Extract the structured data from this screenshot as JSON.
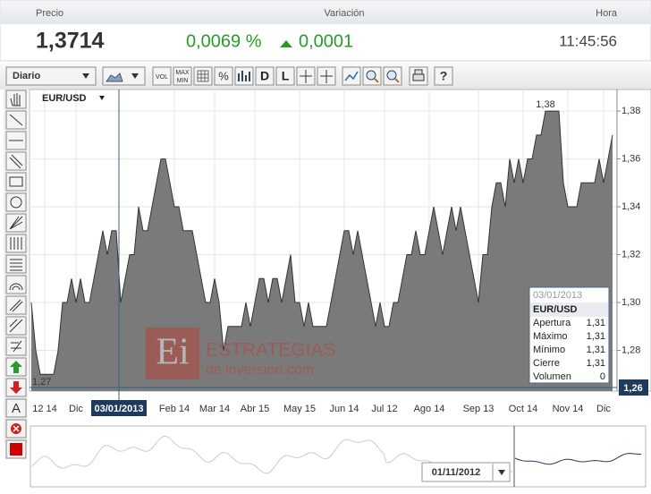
{
  "header": {
    "price_label": "Precio",
    "change_label": "Variación",
    "time_label": "Hora",
    "price": "1,3714",
    "change_pct": "0,0069 %",
    "change_abs": "0,0001",
    "time": "11:45:56"
  },
  "toolbar": {
    "period": "Diario",
    "vol": "VOL",
    "maxmin_top": "MAX",
    "maxmin_bottom": "MIN",
    "pct": "%",
    "d": "D",
    "l": "L",
    "help": "?",
    "text_tool": "A"
  },
  "chart_data": {
    "type": "area",
    "symbol": "EUR/USD",
    "categories": [
      null,
      null,
      null,
      "12 14",
      null,
      null,
      null,
      null,
      null,
      null,
      "Dic",
      null,
      null,
      null,
      null,
      null,
      null,
      null,
      null,
      null,
      null,
      null,
      null,
      null,
      null,
      null,
      null,
      null,
      null,
      null,
      null,
      null,
      "Feb 14",
      null,
      null,
      null,
      null,
      null,
      null,
      null,
      null,
      "Mar 14",
      null,
      null,
      null,
      null,
      null,
      null,
      null,
      null,
      "Abr 15",
      null,
      null,
      null,
      null,
      null,
      null,
      null,
      null,
      null,
      "May 15",
      null,
      null,
      null,
      null,
      null,
      null,
      null,
      null,
      null,
      "Jun 14",
      null,
      null,
      null,
      null,
      null,
      null,
      null,
      null,
      "Jul 12",
      null,
      null,
      null,
      null,
      null,
      null,
      null,
      null,
      null,
      "Ago 14",
      null,
      null,
      null,
      null,
      null,
      null,
      null,
      null,
      null,
      null,
      "Sep 13",
      null,
      null,
      null,
      null,
      null,
      null,
      null,
      null,
      null,
      "Oct 14",
      null,
      null,
      null,
      null,
      null,
      null,
      null,
      null,
      null,
      "Nov 14",
      null,
      null,
      null,
      null,
      null,
      null,
      null,
      "Dic",
      null,
      null
    ],
    "values": [
      1.3,
      1.28,
      1.27,
      1.27,
      1.27,
      1.27,
      1.28,
      1.3,
      1.3,
      1.31,
      1.3,
      1.31,
      1.3,
      1.3,
      1.31,
      1.32,
      1.33,
      1.32,
      1.33,
      1.33,
      1.3,
      1.31,
      1.32,
      1.32,
      1.34,
      1.33,
      1.33,
      1.34,
      1.35,
      1.36,
      1.36,
      1.35,
      1.34,
      1.34,
      1.33,
      1.33,
      1.33,
      1.32,
      1.31,
      1.3,
      1.3,
      1.31,
      1.3,
      1.28,
      1.29,
      1.29,
      1.29,
      1.29,
      1.3,
      1.29,
      1.3,
      1.31,
      1.31,
      1.3,
      1.31,
      1.31,
      1.3,
      1.31,
      1.32,
      1.3,
      1.3,
      1.29,
      1.3,
      1.29,
      1.29,
      1.29,
      1.29,
      1.3,
      1.31,
      1.32,
      1.33,
      1.33,
      1.32,
      1.33,
      1.32,
      1.31,
      1.3,
      1.29,
      1.3,
      1.29,
      1.29,
      1.3,
      1.3,
      1.31,
      1.32,
      1.32,
      1.33,
      1.32,
      1.32,
      1.33,
      1.34,
      1.33,
      1.32,
      1.33,
      1.34,
      1.33,
      1.34,
      1.33,
      1.32,
      1.31,
      1.3,
      1.32,
      1.32,
      1.34,
      1.35,
      1.35,
      1.34,
      1.36,
      1.35,
      1.36,
      1.35,
      1.36,
      1.36,
      1.37,
      1.37,
      1.38,
      1.38,
      1.38,
      1.38,
      1.35,
      1.34,
      1.34,
      1.34,
      1.35,
      1.35,
      1.35,
      1.35,
      1.36,
      1.35,
      1.36,
      1.37
    ],
    "color": "#7a7a7a",
    "ylim": [
      1.263,
      1.389
    ],
    "yticks": [
      {
        "value": 1.28,
        "label": "1,28"
      },
      {
        "value": 1.3,
        "label": "1,30"
      },
      {
        "value": 1.32,
        "label": "1,32"
      },
      {
        "value": 1.34,
        "label": "1,34"
      },
      {
        "value": 1.36,
        "label": "1,36"
      },
      {
        "value": 1.38,
        "label": "1,38"
      }
    ],
    "grid": true,
    "annotations": {
      "max": "1,38",
      "min": "1,27"
    },
    "crosshair": {
      "date": "03/01/2013",
      "price": "1,26"
    }
  },
  "tooltip": {
    "date": "03/01/2013",
    "symbol": "EUR/USD",
    "rows": [
      [
        "Apertura",
        "1,31"
      ],
      [
        "Máximo",
        "1,31"
      ],
      [
        "Mínimo",
        "1,31"
      ],
      [
        "Cierre",
        "1,31"
      ],
      [
        "Volumen",
        "0"
      ]
    ]
  },
  "navigator": {
    "date": "01/11/2012"
  },
  "watermark": {
    "logo": "Ei",
    "brand": "ESTRATEGIAS",
    "sub": "de inversion.com"
  }
}
